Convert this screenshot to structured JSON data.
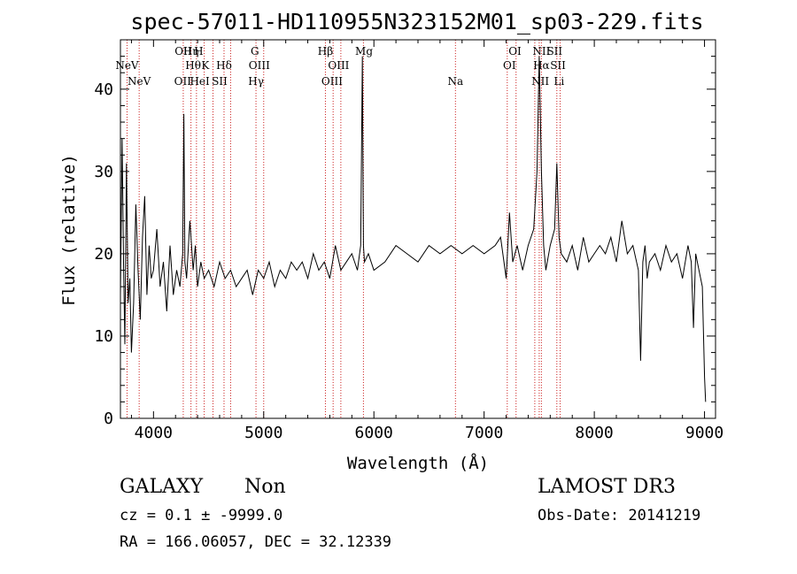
{
  "chart_data": {
    "type": "line",
    "title": "spec-57011-HD110955N323152M01_sp03-229.fits",
    "xlabel": "Wavelength (Å)",
    "ylabel": "Flux (relative)",
    "xlim": [
      3700,
      9100
    ],
    "ylim": [
      0,
      46
    ],
    "xticks": [
      4000,
      5000,
      6000,
      7000,
      8000,
      9000
    ],
    "yticks": [
      0,
      10,
      20,
      30,
      40
    ],
    "xtick_labels": [
      "4000",
      "5000",
      "6000",
      "7000",
      "8000",
      "9000"
    ],
    "ytick_labels": [
      "0",
      "10",
      "20",
      "30",
      "40"
    ],
    "grid": false,
    "series": [
      {
        "name": "spectrum",
        "x": [
          3700,
          3715,
          3728,
          3740,
          3755,
          3770,
          3785,
          3800,
          3820,
          3840,
          3860,
          3880,
          3900,
          3920,
          3940,
          3960,
          3980,
          4000,
          4030,
          4060,
          4090,
          4120,
          4150,
          4180,
          4210,
          4240,
          4265,
          4275,
          4285,
          4300,
          4330,
          4345,
          4360,
          4380,
          4400,
          4430,
          4460,
          4500,
          4550,
          4600,
          4650,
          4700,
          4750,
          4800,
          4850,
          4900,
          4950,
          5000,
          5050,
          5100,
          5150,
          5200,
          5250,
          5300,
          5350,
          5400,
          5450,
          5500,
          5550,
          5600,
          5650,
          5700,
          5750,
          5800,
          5850,
          5880,
          5895,
          5905,
          5915,
          5950,
          6000,
          6100,
          6200,
          6300,
          6400,
          6500,
          6600,
          6700,
          6800,
          6900,
          7000,
          7100,
          7150,
          7200,
          7230,
          7260,
          7300,
          7350,
          7400,
          7450,
          7480,
          7500,
          7520,
          7540,
          7560,
          7600,
          7640,
          7660,
          7680,
          7700,
          7750,
          7800,
          7850,
          7900,
          7950,
          8000,
          8050,
          8100,
          8150,
          8200,
          8250,
          8300,
          8350,
          8400,
          8420,
          8440,
          8460,
          8480,
          8500,
          8550,
          8600,
          8650,
          8700,
          8750,
          8800,
          8850,
          8880,
          8900,
          8920,
          8950,
          8980,
          9000,
          9010
        ],
        "y": [
          15,
          34,
          19,
          9,
          31,
          14,
          17,
          8,
          14,
          26,
          18,
          12,
          22,
          27,
          15,
          21,
          17,
          18,
          23,
          16,
          19,
          13,
          21,
          15,
          18,
          16,
          20,
          37,
          19,
          17,
          24,
          21,
          18,
          21,
          16,
          19,
          17,
          18,
          16,
          19,
          17,
          18,
          16,
          17,
          18,
          15,
          18,
          17,
          19,
          16,
          18,
          17,
          19,
          18,
          19,
          17,
          20,
          18,
          19,
          17,
          21,
          18,
          19,
          20,
          18,
          21,
          44,
          21,
          19,
          20,
          18,
          19,
          21,
          20,
          19,
          21,
          20,
          21,
          20,
          21,
          20,
          21,
          22,
          17,
          25,
          19,
          21,
          18,
          21,
          23,
          30,
          44,
          30,
          21,
          18,
          21,
          23,
          31,
          22,
          20,
          19,
          21,
          18,
          22,
          19,
          20,
          21,
          20,
          22,
          19,
          24,
          20,
          21,
          18,
          7,
          19,
          21,
          17,
          19,
          20,
          18,
          21,
          19,
          20,
          17,
          21,
          19,
          11,
          20,
          18,
          16,
          5,
          2
        ]
      }
    ],
    "line_markers": [
      {
        "wavelength": 3760,
        "label": "NeV",
        "row": 1
      },
      {
        "wavelength": 3870,
        "label": "NeV",
        "row": 2
      },
      {
        "wavelength": 4270,
        "label": "OII",
        "row": 0
      },
      {
        "wavelength": 4340,
        "label": "Hη",
        "row": 0
      },
      {
        "wavelength": 4410,
        "label": "H",
        "row": 0
      },
      {
        "wavelength": 4470,
        "label": "K",
        "row": 1
      },
      {
        "wavelength": 4360,
        "label": "Hθ",
        "row": 1
      },
      {
        "wavelength": 4640,
        "label": "Hδ",
        "row": 1
      },
      {
        "wavelength": 4265,
        "label": "OII",
        "row": 2
      },
      {
        "wavelength": 4420,
        "label": "HeI",
        "row": 2
      },
      {
        "wavelength": 4600,
        "label": "SII",
        "row": 2
      },
      {
        "wavelength": 4920,
        "label": "G",
        "row": 0
      },
      {
        "wavelength": 4960,
        "label": "OIII",
        "row": 1
      },
      {
        "wavelength": 4930,
        "label": "Hγ",
        "row": 2
      },
      {
        "wavelength": 5560,
        "label": "Hβ",
        "row": 0
      },
      {
        "wavelength": 5680,
        "label": "OIII",
        "row": 1
      },
      {
        "wavelength": 5620,
        "label": "OIII",
        "row": 2
      },
      {
        "wavelength": 5910,
        "label": "Mg",
        "row": 0
      },
      {
        "wavelength": 6740,
        "label": "Na",
        "row": 2
      },
      {
        "wavelength": 7280,
        "label": "OI",
        "row": 0
      },
      {
        "wavelength": 7230,
        "label": "OI",
        "row": 1
      },
      {
        "wavelength": 7520,
        "label": "NII",
        "row": 0
      },
      {
        "wavelength": 7640,
        "label": "SII",
        "row": 0
      },
      {
        "wavelength": 7520,
        "label": "Hα",
        "row": 1
      },
      {
        "wavelength": 7670,
        "label": "SII",
        "row": 1
      },
      {
        "wavelength": 7510,
        "label": "NII",
        "row": 2
      },
      {
        "wavelength": 7680,
        "label": "Li",
        "row": 2
      }
    ],
    "marker_lines": [
      3760,
      3870,
      4270,
      4340,
      4390,
      4460,
      4540,
      4640,
      4700,
      4930,
      5000,
      5560,
      5630,
      5700,
      5905,
      6740,
      7210,
      7290,
      7460,
      7500,
      7520,
      7660,
      7690
    ]
  },
  "info": {
    "class": "GALAXY",
    "subclass": "Non",
    "cz": "cz = 0.1 ± -9999.0",
    "radec": "RA = 166.06057, DEC =  32.12339",
    "survey": "LAMOST DR3",
    "obsdate": "Obs-Date: 20141219"
  }
}
